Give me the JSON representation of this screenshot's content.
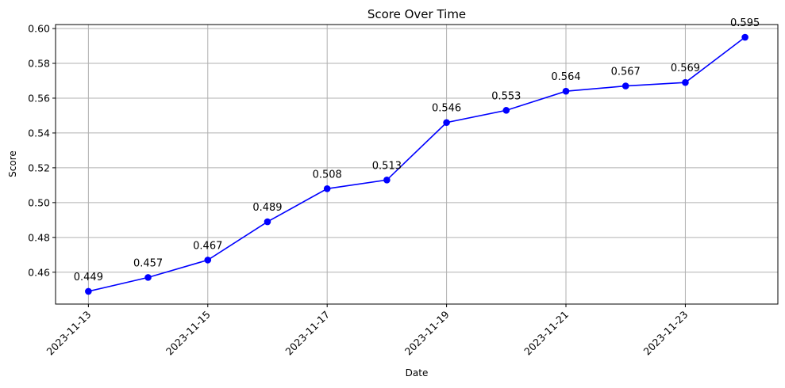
{
  "chart_data": {
    "type": "line",
    "title": "Score Over Time",
    "xlabel": "Date",
    "ylabel": "Score",
    "grid": true,
    "line_color": "#0000ff",
    "grid_color": "#b0b0b0",
    "x": [
      "2023-11-13",
      "2023-11-14",
      "2023-11-15",
      "2023-11-16",
      "2023-11-17",
      "2023-11-18",
      "2023-11-19",
      "2023-11-20",
      "2023-11-21",
      "2023-11-22",
      "2023-11-23",
      "2023-11-24"
    ],
    "series": [
      {
        "values": [
          0.449,
          0.457,
          0.467,
          0.489,
          0.508,
          0.513,
          0.546,
          0.553,
          0.564,
          0.567,
          0.569,
          0.595
        ],
        "labels": [
          "0.449",
          "0.457",
          "0.467",
          "0.489",
          "0.508",
          "0.513",
          "0.546",
          "0.553",
          "0.564",
          "0.567",
          "0.569",
          "0.595"
        ]
      }
    ],
    "xticks": [
      "2023-11-13",
      "2023-11-15",
      "2023-11-17",
      "2023-11-19",
      "2023-11-21",
      "2023-11-23"
    ],
    "yticks": [
      "0.46",
      "0.48",
      "0.50",
      "0.52",
      "0.54",
      "0.56",
      "0.58",
      "0.60"
    ],
    "xlim": [
      "2023-11-12T10:48",
      "2023-11-24T13:12"
    ],
    "ylim": [
      0.4417,
      0.6023
    ]
  }
}
